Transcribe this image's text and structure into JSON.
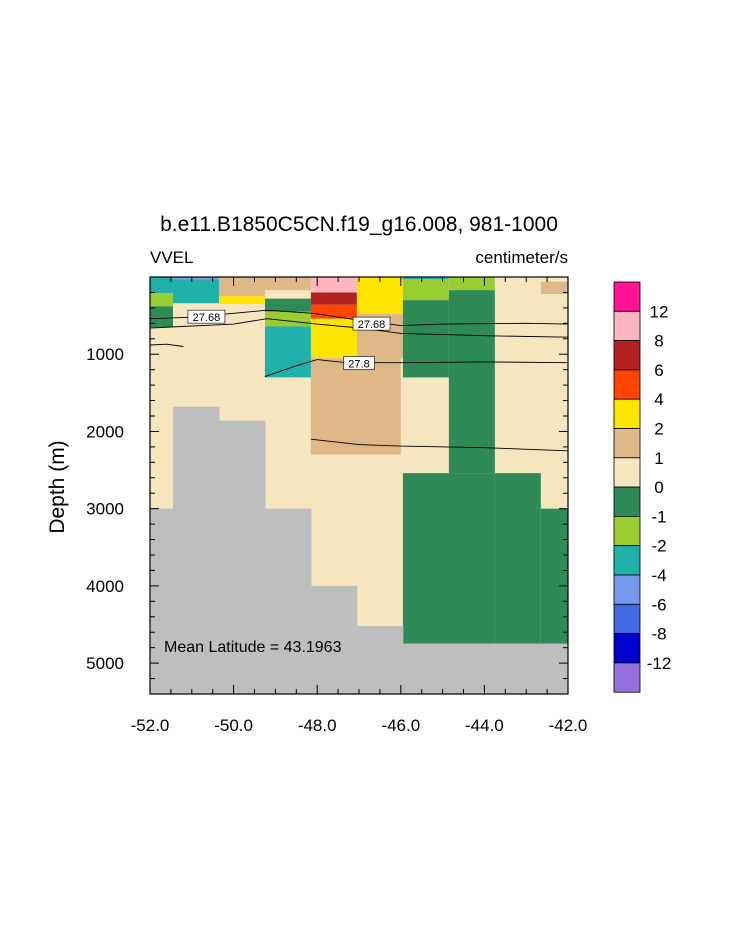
{
  "chart_data": {
    "type": "heatmap",
    "title": "b.e11.B1850C5CN.f19_g16.008, 981-1000",
    "left_string": "VVEL",
    "right_string": "centimeter/s",
    "ylabel": "Depth (m)",
    "xlim": [
      -52.0,
      -42.0
    ],
    "ylim": [
      5400,
      0
    ],
    "y_reversed": true,
    "x_ticks": [
      -52.0,
      -50.0,
      -48.0,
      -46.0,
      -44.0,
      -42.0
    ],
    "x_tick_labels": [
      "-52.0",
      "-50.0",
      "-48.0",
      "-46.0",
      "-44.0",
      "-42.0"
    ],
    "y_ticks": [
      1000,
      2000,
      3000,
      4000,
      5000
    ],
    "y_tick_labels": [
      "1000",
      "2000",
      "3000",
      "4000",
      "5000"
    ],
    "annotation": "Mean Latitude = 43.1963",
    "background_value_color": "#f5e6c0",
    "land_color": "#bebebe",
    "column_edges": [
      -52.0,
      -51.45,
      -50.35,
      -49.25,
      -48.15,
      -47.05,
      -45.95,
      -44.85,
      -43.75,
      -42.65,
      -42.0
    ],
    "land_tops": [
      3000,
      1680,
      1860,
      3000,
      4000,
      4520,
      4750,
      4750,
      4750,
      4750
    ],
    "cells": [
      {
        "x": [
          -52.0,
          -51.45
        ],
        "y": [
          0,
          210
        ],
        "color": "#20b2aa"
      },
      {
        "x": [
          -52.0,
          -51.45
        ],
        "y": [
          210,
          380
        ],
        "color": "#9acd32"
      },
      {
        "x": [
          -52.0,
          -51.45
        ],
        "y": [
          380,
          520
        ],
        "color": "#2e8b57"
      },
      {
        "x": [
          -52.0,
          -51.45
        ],
        "y": [
          520,
          650
        ],
        "color": "#2e8b57"
      },
      {
        "x": [
          -51.45,
          -50.35
        ],
        "y": [
          0,
          30
        ],
        "color": "#7799ee"
      },
      {
        "x": [
          -51.45,
          -50.35
        ],
        "y": [
          30,
          340
        ],
        "color": "#20b2aa"
      },
      {
        "x": [
          -50.35,
          -49.25
        ],
        "y": [
          0,
          250
        ],
        "color": "#deb887"
      },
      {
        "x": [
          -50.35,
          -49.25
        ],
        "y": [
          250,
          350
        ],
        "color": "#ffe400"
      },
      {
        "x": [
          -49.25,
          -48.15
        ],
        "y": [
          0,
          170
        ],
        "color": "#deb887"
      },
      {
        "x": [
          -49.25,
          -48.15
        ],
        "y": [
          280,
          450
        ],
        "color": "#2e8b57"
      },
      {
        "x": [
          -49.25,
          -48.15
        ],
        "y": [
          450,
          640
        ],
        "color": "#9acd32"
      },
      {
        "x": [
          -49.25,
          -48.15
        ],
        "y": [
          640,
          1300
        ],
        "color": "#20b2aa"
      },
      {
        "x": [
          -48.15,
          -47.05
        ],
        "y": [
          0,
          200
        ],
        "color": "#ffb6c1"
      },
      {
        "x": [
          -48.15,
          -47.05
        ],
        "y": [
          200,
          360
        ],
        "color": "#b22222"
      },
      {
        "x": [
          -48.15,
          -47.05
        ],
        "y": [
          360,
          540
        ],
        "color": "#ff4500"
      },
      {
        "x": [
          -48.15,
          -47.05
        ],
        "y": [
          540,
          1050
        ],
        "color": "#ffe400"
      },
      {
        "x": [
          -48.15,
          -46.0
        ],
        "y": [
          1050,
          2300
        ],
        "color": "#deb887"
      },
      {
        "x": [
          -47.05,
          -45.95
        ],
        "y": [
          0,
          480
        ],
        "color": "#ffe400"
      },
      {
        "x": [
          -47.05,
          -45.95
        ],
        "y": [
          480,
          1050
        ],
        "color": "#deb887"
      },
      {
        "x": [
          -45.95,
          -44.85
        ],
        "y": [
          0,
          30
        ],
        "color": "#20b2aa"
      },
      {
        "x": [
          -45.95,
          -44.85
        ],
        "y": [
          30,
          300
        ],
        "color": "#9acd32"
      },
      {
        "x": [
          -45.95,
          -44.85
        ],
        "y": [
          300,
          1300
        ],
        "color": "#2e8b57"
      },
      {
        "x": [
          -44.85,
          -43.75
        ],
        "y": [
          0,
          170
        ],
        "color": "#9acd32"
      },
      {
        "x": [
          -44.85,
          -43.75
        ],
        "y": [
          170,
          2540
        ],
        "color": "#2e8b57"
      },
      {
        "x": [
          -45.95,
          -43.75
        ],
        "y": [
          2540,
          4750
        ],
        "color": "#2e8b57"
      },
      {
        "x": [
          -43.75,
          -42.65
        ],
        "y": [
          2540,
          4750
        ],
        "color": "#2e8b57"
      },
      {
        "x": [
          -42.65,
          -42.0
        ],
        "y": [
          3000,
          4750
        ],
        "color": "#2e8b57"
      },
      {
        "x": [
          -42.65,
          -42.0
        ],
        "y": [
          60,
          220
        ],
        "color": "#deb887"
      }
    ],
    "contours": [
      {
        "label": "27.68",
        "label_at": [
          -50.65,
          520
        ],
        "points": [
          [
            -52.0,
            540
          ],
          [
            -51.0,
            520
          ],
          [
            -50.0,
            470
          ],
          [
            -49.2,
            430
          ],
          [
            -48.1,
            470
          ],
          [
            -47.0,
            560
          ],
          [
            -46.0,
            630
          ],
          [
            -45.0,
            610
          ],
          [
            -43.0,
            600
          ],
          [
            -42.0,
            610
          ]
        ]
      },
      {
        "label": "27.68",
        "label_at": [
          -46.7,
          610
        ],
        "points": [
          [
            -52.0,
            660
          ],
          [
            -50.0,
            610
          ],
          [
            -49.2,
            540
          ],
          [
            -48.0,
            610
          ],
          [
            -47.0,
            660
          ],
          [
            -46.0,
            730
          ],
          [
            -44.0,
            760
          ],
          [
            -42.0,
            780
          ]
        ]
      },
      {
        "label": "",
        "label_at": null,
        "points": [
          [
            -52.0,
            880
          ],
          [
            -51.6,
            870
          ],
          [
            -51.2,
            900
          ]
        ]
      },
      {
        "label": "27.8",
        "label_at": [
          -47.0,
          1120
        ],
        "points": [
          [
            -49.25,
            1290
          ],
          [
            -48.5,
            1150
          ],
          [
            -48.0,
            1070
          ],
          [
            -47.3,
            1110
          ],
          [
            -46.0,
            1110
          ],
          [
            -44.0,
            1100
          ],
          [
            -42.0,
            1110
          ]
        ]
      },
      {
        "label": "",
        "label_at": null,
        "points": [
          [
            -48.15,
            2100
          ],
          [
            -47.0,
            2170
          ],
          [
            -46.0,
            2190
          ],
          [
            -44.0,
            2210
          ],
          [
            -42.0,
            2250
          ]
        ]
      }
    ],
    "colorbar": {
      "colors": [
        "#ff1493",
        "#ffb6c1",
        "#b22222",
        "#ff4500",
        "#ffe400",
        "#deb887",
        "#f5e6c0",
        "#2e8b57",
        "#9acd32",
        "#20b2aa",
        "#7799ee",
        "#4169e1",
        "#0000cd",
        "#9370db"
      ],
      "labels": [
        "12",
        "8",
        "6",
        "4",
        "2",
        "1",
        "0",
        "-1",
        "-2",
        "-4",
        "-6",
        "-8",
        "-12"
      ]
    }
  }
}
